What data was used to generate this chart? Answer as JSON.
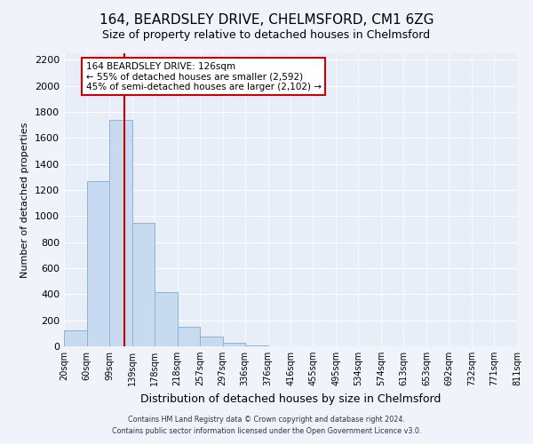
{
  "title": "164, BEARDSLEY DRIVE, CHELMSFORD, CM1 6ZG",
  "subtitle": "Size of property relative to detached houses in Chelmsford",
  "xlabel": "Distribution of detached houses by size in Chelmsford",
  "ylabel": "Number of detached properties",
  "bar_color": "#c8daf0",
  "bar_edgecolor": "#8ab4d8",
  "bin_edges": [
    20,
    60,
    99,
    139,
    178,
    218,
    257,
    297,
    336,
    376,
    416,
    455,
    495,
    534,
    574,
    613,
    653,
    692,
    732,
    771,
    811
  ],
  "bar_heights": [
    120,
    1270,
    1740,
    950,
    415,
    150,
    75,
    30,
    10,
    0,
    0,
    0,
    0,
    0,
    0,
    0,
    0,
    0,
    0,
    0
  ],
  "property_line_x": 126,
  "property_line_color": "#cc0000",
  "annotation_line1": "164 BEARDSLEY DRIVE: 126sqm",
  "annotation_line2": "← 55% of detached houses are smaller (2,592)",
  "annotation_line3": "45% of semi-detached houses are larger (2,102) →",
  "annotation_box_facecolor": "#ffffff",
  "annotation_box_edgecolor": "#cc0000",
  "ylim": [
    0,
    2250
  ],
  "yticks": [
    0,
    200,
    400,
    600,
    800,
    1000,
    1200,
    1400,
    1600,
    1800,
    2000,
    2200
  ],
  "tick_labels": [
    "20sqm",
    "60sqm",
    "99sqm",
    "139sqm",
    "178sqm",
    "218sqm",
    "257sqm",
    "297sqm",
    "336sqm",
    "376sqm",
    "416sqm",
    "455sqm",
    "495sqm",
    "534sqm",
    "574sqm",
    "613sqm",
    "653sqm",
    "692sqm",
    "732sqm",
    "771sqm",
    "811sqm"
  ],
  "plot_bg_color": "#e8eef8",
  "fig_bg_color": "#f0f4fa",
  "footer_line1": "Contains HM Land Registry data © Crown copyright and database right 2024.",
  "footer_line2": "Contains public sector information licensed under the Open Government Licence v3.0.",
  "grid_color": "#ffffff",
  "ytick_fontsize": 8,
  "xtick_fontsize": 7,
  "ylabel_fontsize": 8,
  "xlabel_fontsize": 9,
  "title_fontsize": 11,
  "subtitle_fontsize": 9
}
